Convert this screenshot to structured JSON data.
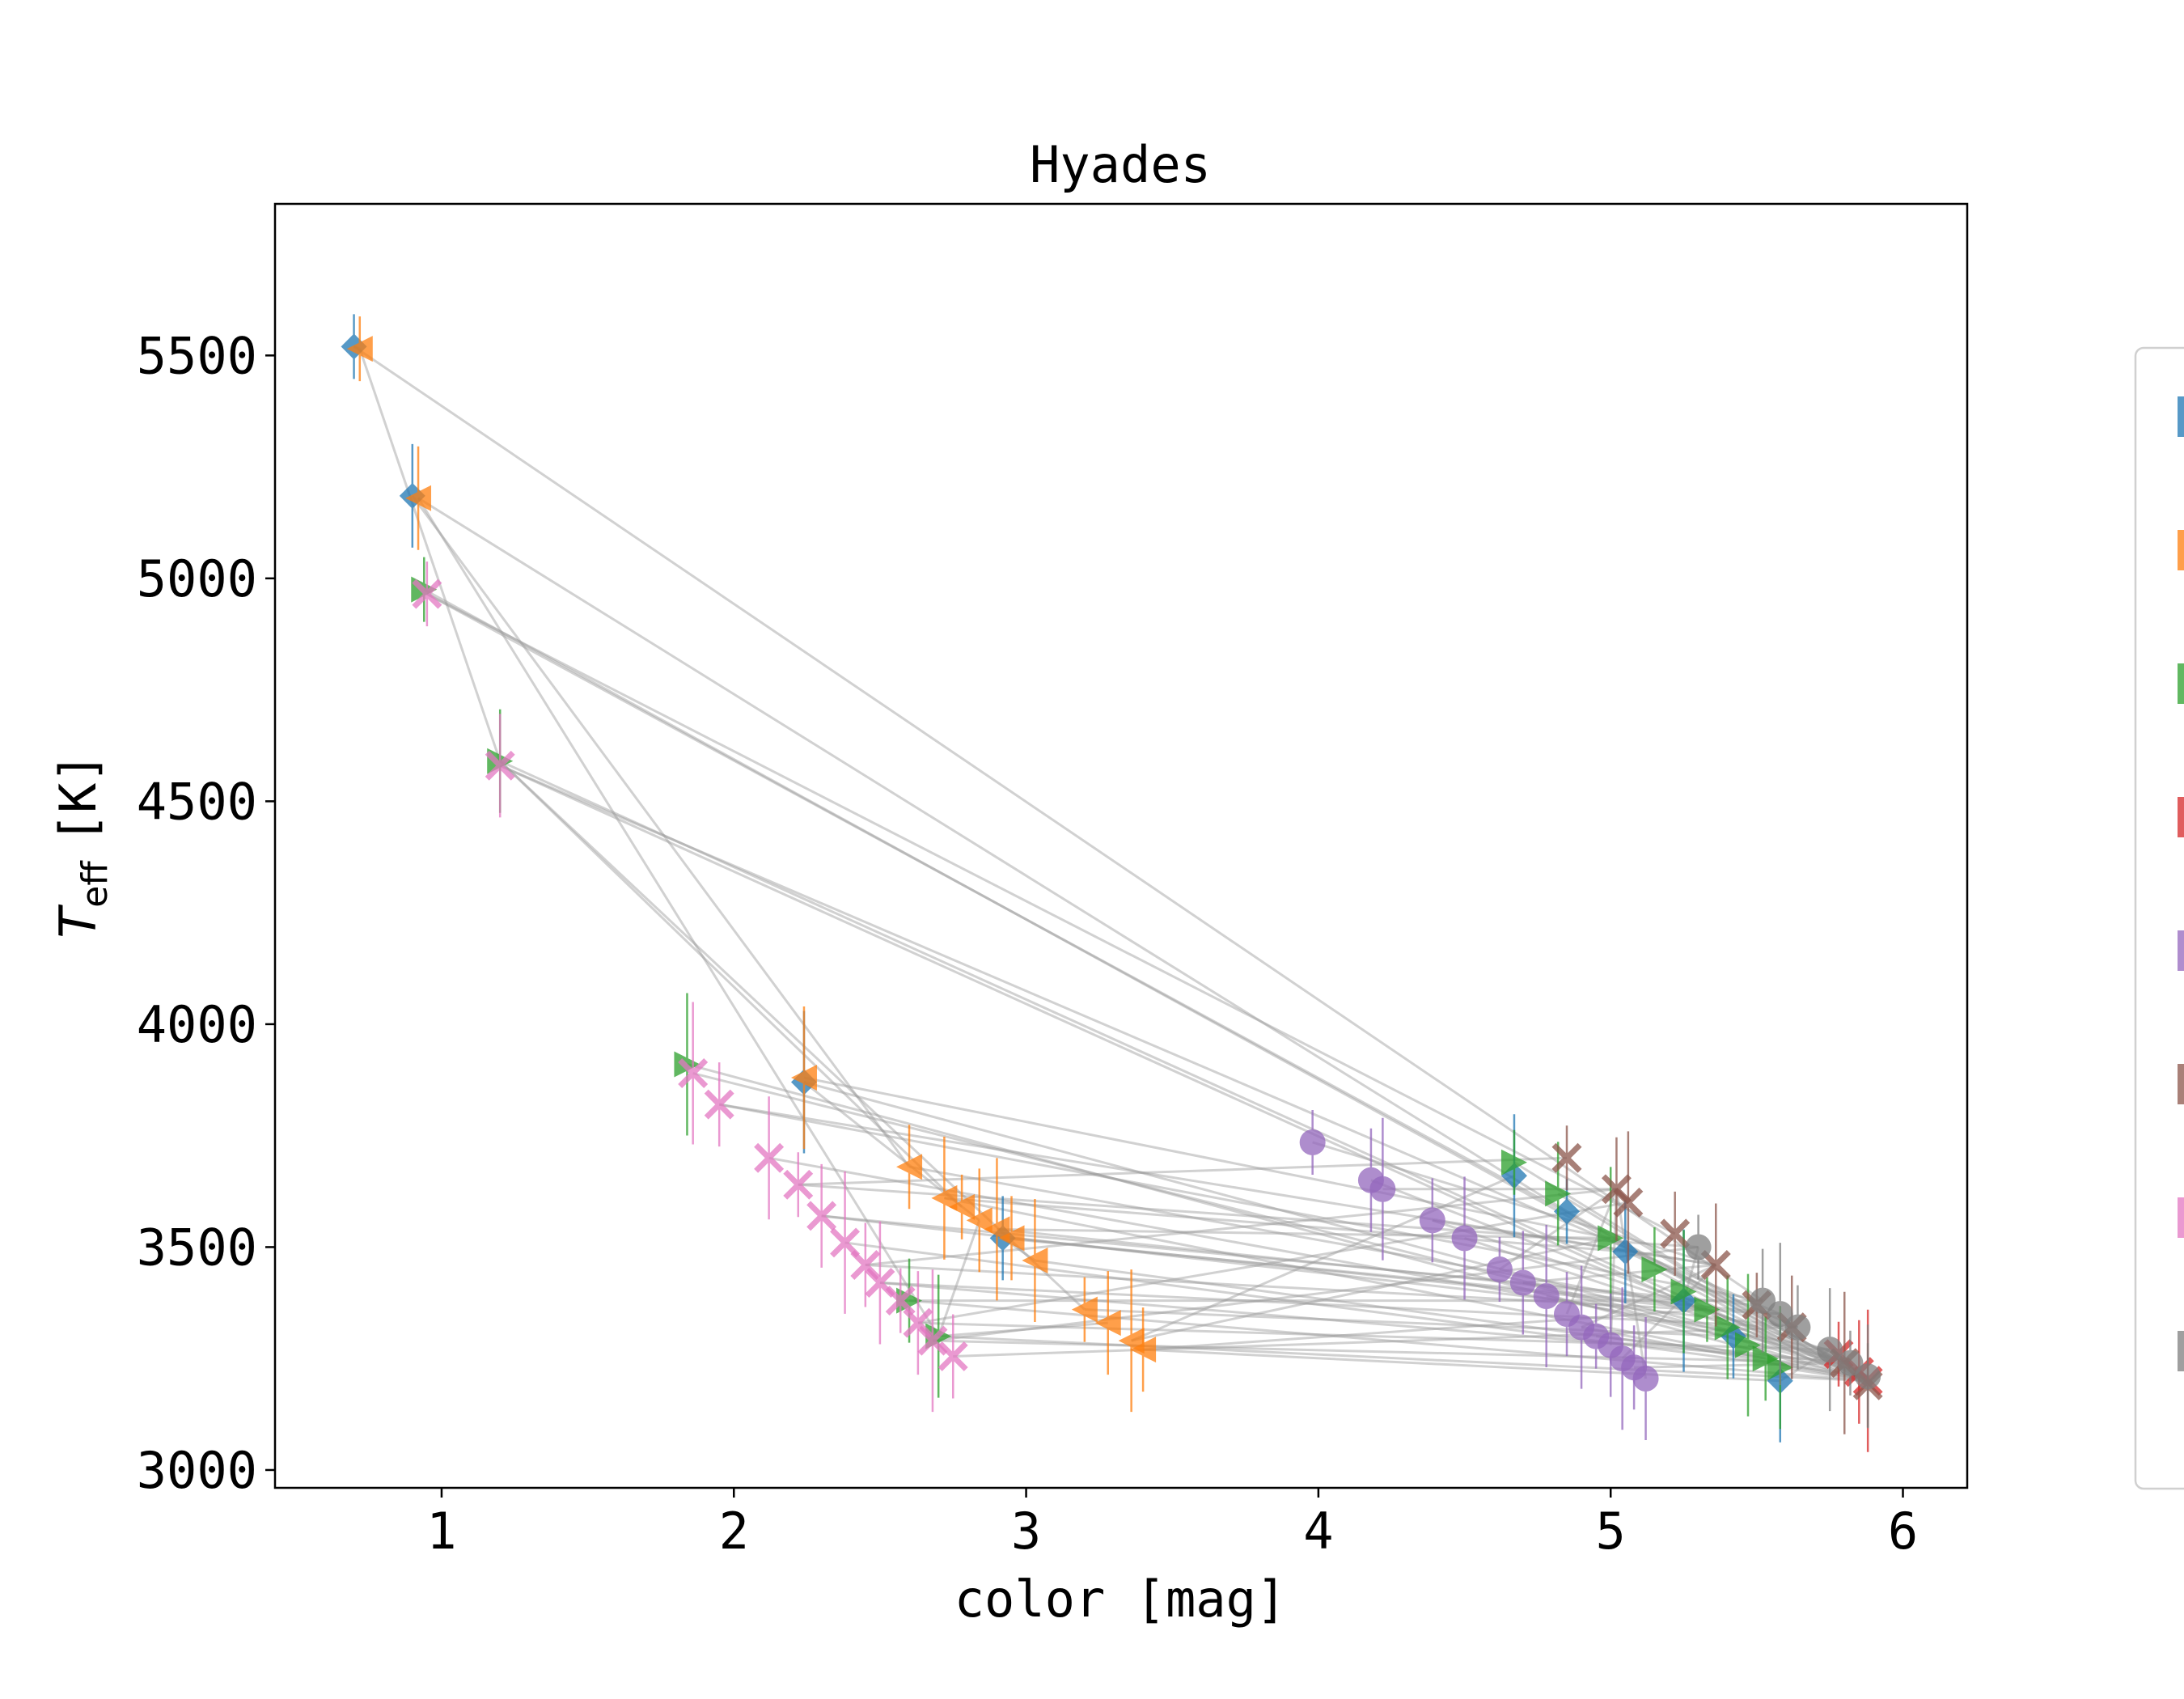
{
  "chart_data": {
    "type": "scatter",
    "title": "Hyades",
    "xlabel": "color [mag]",
    "ylabel": {
      "symbol": "T",
      "subscript": "eff",
      "unit": "[K]"
    },
    "xlim": [
      0.43,
      6.22
    ],
    "ylim": [
      2960,
      5840
    ],
    "xticks": [
      1,
      2,
      3,
      4,
      5,
      6
    ],
    "yticks": [
      3000,
      3500,
      4000,
      4500,
      5000,
      5500
    ],
    "grid": false,
    "legend": "right (clipped)",
    "connector_color": "#999999",
    "series": [
      {
        "color": "#1f77b4",
        "marker": "diamond",
        "points": [
          [
            0.7,
            5520
          ],
          [
            0.9,
            5185
          ],
          [
            2.24,
            3870
          ],
          [
            2.92,
            3520
          ],
          [
            4.67,
            3660
          ],
          [
            4.85,
            3580
          ],
          [
            5.05,
            3490
          ],
          [
            5.25,
            3380
          ],
          [
            5.42,
            3300
          ],
          [
            5.58,
            3200
          ]
        ]
      },
      {
        "color": "#ff7f0e",
        "marker": "triangle-left",
        "points": [
          [
            0.72,
            5515
          ],
          [
            0.92,
            5180
          ],
          [
            2.24,
            3880
          ],
          [
            2.6,
            3680
          ],
          [
            2.72,
            3610
          ],
          [
            2.78,
            3590
          ],
          [
            2.84,
            3560
          ],
          [
            2.9,
            3540
          ],
          [
            2.95,
            3520
          ],
          [
            3.03,
            3470
          ],
          [
            3.2,
            3360
          ],
          [
            3.28,
            3330
          ],
          [
            3.36,
            3290
          ],
          [
            3.4,
            3270
          ]
        ]
      },
      {
        "color": "#2ca02c",
        "marker": "triangle-right",
        "points": [
          [
            0.94,
            4975
          ],
          [
            1.2,
            4590
          ],
          [
            1.84,
            3910
          ],
          [
            2.6,
            3380
          ],
          [
            2.7,
            3300
          ],
          [
            4.67,
            3690
          ],
          [
            4.82,
            3620
          ],
          [
            5.0,
            3520
          ],
          [
            5.15,
            3450
          ],
          [
            5.25,
            3400
          ],
          [
            5.33,
            3360
          ],
          [
            5.4,
            3320
          ],
          [
            5.47,
            3280
          ],
          [
            5.53,
            3250
          ],
          [
            5.58,
            3230
          ]
        ]
      },
      {
        "color": "#d62728",
        "marker": "x",
        "points": [
          [
            5.78,
            3260
          ],
          [
            5.85,
            3220
          ],
          [
            5.88,
            3200
          ]
        ]
      },
      {
        "color": "#9467bd",
        "marker": "circle",
        "points": [
          [
            3.98,
            3735
          ],
          [
            4.18,
            3650
          ],
          [
            4.22,
            3630
          ],
          [
            4.39,
            3560
          ],
          [
            4.5,
            3520
          ],
          [
            4.62,
            3450
          ],
          [
            4.7,
            3420
          ],
          [
            4.78,
            3390
          ],
          [
            4.85,
            3350
          ],
          [
            4.9,
            3320
          ],
          [
            4.95,
            3300
          ],
          [
            5.0,
            3280
          ],
          [
            5.04,
            3250
          ],
          [
            5.08,
            3230
          ],
          [
            5.12,
            3205
          ]
        ]
      },
      {
        "color": "#8c564b",
        "marker": "x",
        "points": [
          [
            4.85,
            3700
          ],
          [
            5.02,
            3630
          ],
          [
            5.06,
            3600
          ],
          [
            5.22,
            3530
          ],
          [
            5.36,
            3460
          ],
          [
            5.5,
            3370
          ],
          [
            5.62,
            3320
          ],
          [
            5.8,
            3240
          ],
          [
            5.88,
            3190
          ]
        ]
      },
      {
        "color": "#e377c2",
        "marker": "x",
        "points": [
          [
            0.95,
            4965
          ],
          [
            1.2,
            4580
          ],
          [
            1.86,
            3890
          ],
          [
            1.95,
            3820
          ],
          [
            2.12,
            3700
          ],
          [
            2.22,
            3640
          ],
          [
            2.3,
            3570
          ],
          [
            2.38,
            3510
          ],
          [
            2.45,
            3460
          ],
          [
            2.5,
            3420
          ],
          [
            2.57,
            3380
          ],
          [
            2.63,
            3330
          ],
          [
            2.68,
            3290
          ],
          [
            2.75,
            3255
          ]
        ]
      },
      {
        "color": "#7f7f7f",
        "marker": "circle",
        "points": [
          [
            5.3,
            3500
          ],
          [
            5.52,
            3380
          ],
          [
            5.58,
            3350
          ],
          [
            5.64,
            3320
          ],
          [
            5.75,
            3270
          ],
          [
            5.82,
            3240
          ],
          [
            5.88,
            3210
          ]
        ]
      }
    ]
  }
}
